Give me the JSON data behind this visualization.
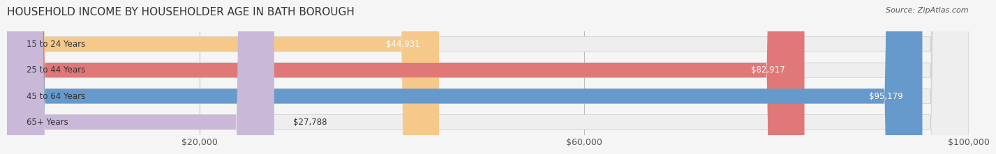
{
  "title": "HOUSEHOLD INCOME BY HOUSEHOLDER AGE IN BATH BOROUGH",
  "source": "Source: ZipAtlas.com",
  "categories": [
    "15 to 24 Years",
    "25 to 44 Years",
    "45 to 64 Years",
    "65+ Years"
  ],
  "values": [
    44931,
    82917,
    95179,
    27788
  ],
  "bar_colors": [
    "#f5c98a",
    "#e07878",
    "#6699cc",
    "#c9b8d8"
  ],
  "bar_bg_color": "#eeeeee",
  "label_colors": [
    "#555555",
    "#ffffff",
    "#ffffff",
    "#555555"
  ],
  "xlim": [
    0,
    100000
  ],
  "xticks": [
    20000,
    60000,
    100000
  ],
  "xtick_labels": [
    "$20,000",
    "$60,000",
    "$100,000"
  ],
  "bar_height": 0.55,
  "background_color": "#f5f5f5",
  "title_fontsize": 11,
  "tick_fontsize": 9,
  "label_fontsize": 8.5,
  "value_fontsize": 8.5
}
